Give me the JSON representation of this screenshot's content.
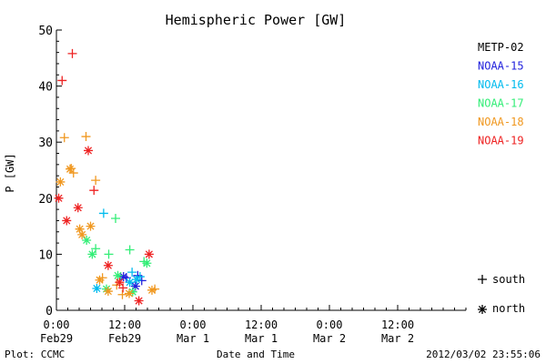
{
  "chart_data": {
    "type": "scatter",
    "title": "Hemispheric Power [GW]",
    "ylabel": "P [GW]",
    "xlabel": "Date and Time",
    "ylim": [
      0,
      50
    ],
    "yticks": [
      0,
      10,
      20,
      30,
      40,
      50
    ],
    "xlim": [
      0,
      72
    ],
    "xticks": [
      {
        "x": 0,
        "label": "0:00",
        "sublabel": "Feb29"
      },
      {
        "x": 12,
        "label": "12:00",
        "sublabel": "Feb29"
      },
      {
        "x": 24,
        "label": "0:00",
        "sublabel": "Mar 1"
      },
      {
        "x": 36,
        "label": "12:00",
        "sublabel": "Mar 1"
      },
      {
        "x": 48,
        "label": "0:00",
        "sublabel": "Mar 2"
      },
      {
        "x": 60,
        "label": "12:00",
        "sublabel": "Mar 2"
      }
    ],
    "x_unit": "hours since 2012-02-29 00:00 UT",
    "legend_position": "right",
    "marker_legend": [
      {
        "symbol": "+",
        "label": "south"
      },
      {
        "symbol": "*",
        "label": "north"
      }
    ],
    "series": [
      {
        "name": "METP-02",
        "color": "#000000",
        "south": [],
        "north": []
      },
      {
        "name": "NOAA-15",
        "color": "#2222dd",
        "south": [
          [
            12.3,
            5.8
          ],
          [
            14.3,
            6.2
          ],
          [
            15.0,
            5.3
          ]
        ],
        "north": [
          [
            11.8,
            6.0
          ],
          [
            13.9,
            4.3
          ]
        ]
      },
      {
        "name": "NOAA-16",
        "color": "#00bbee",
        "south": [
          [
            8.3,
            17.3
          ],
          [
            13.3,
            6.8
          ],
          [
            14.7,
            6.0
          ]
        ],
        "north": [
          [
            7.1,
            3.9
          ],
          [
            12.9,
            5.0
          ],
          [
            14.1,
            5.5
          ]
        ]
      },
      {
        "name": "NOAA-17",
        "color": "#33ee77",
        "south": [
          [
            10.4,
            16.4
          ],
          [
            12.9,
            10.8
          ],
          [
            15.4,
            8.7
          ],
          [
            9.2,
            10.0
          ],
          [
            6.9,
            11.0
          ]
        ],
        "north": [
          [
            5.3,
            12.5
          ],
          [
            6.3,
            10.0
          ],
          [
            10.8,
            6.2
          ],
          [
            15.9,
            8.4
          ],
          [
            8.8,
            3.8
          ],
          [
            13.4,
            3.3
          ]
        ]
      },
      {
        "name": "NOAA-18",
        "color": "#f09820",
        "south": [
          [
            1.4,
            30.8
          ],
          [
            5.2,
            31.0
          ],
          [
            2.6,
            25.3
          ],
          [
            6.9,
            23.2
          ],
          [
            3.0,
            24.5
          ],
          [
            8.1,
            5.8
          ],
          [
            10.6,
            4.5
          ],
          [
            11.6,
            2.8
          ],
          [
            17.3,
            3.8
          ]
        ],
        "north": [
          [
            0.7,
            22.9
          ],
          [
            2.4,
            25.2
          ],
          [
            4.1,
            14.5
          ],
          [
            4.5,
            13.5
          ],
          [
            6.0,
            15.0
          ],
          [
            7.6,
            5.4
          ],
          [
            9.1,
            3.4
          ],
          [
            12.8,
            3.0
          ],
          [
            16.8,
            3.6
          ]
        ]
      },
      {
        "name": "NOAA-19",
        "color": "#ee2222",
        "south": [
          [
            2.8,
            45.8
          ],
          [
            1.0,
            41.0
          ],
          [
            6.6,
            21.4
          ],
          [
            11.7,
            4.0
          ]
        ],
        "north": [
          [
            5.6,
            28.5
          ],
          [
            0.4,
            20.0
          ],
          [
            3.8,
            18.3
          ],
          [
            1.8,
            16.0
          ],
          [
            9.1,
            8.0
          ],
          [
            16.3,
            10.0
          ],
          [
            11.1,
            5.0
          ],
          [
            14.5,
            1.7
          ]
        ]
      }
    ]
  },
  "footer": {
    "left": "Plot: CCMC",
    "timestamp": "2012/03/02 23:55:06"
  }
}
